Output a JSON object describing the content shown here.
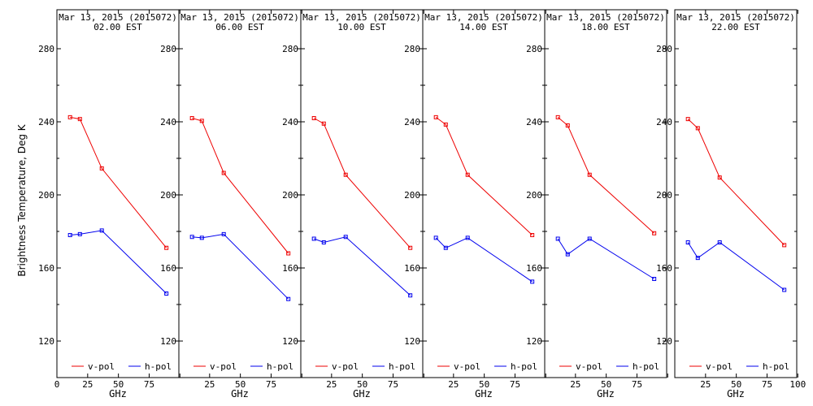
{
  "chart_data": {
    "type": "line",
    "ylabel": "Brightness Temperature, Deg K",
    "xlabel": "GHz",
    "xlim": [
      0,
      100
    ],
    "ylim": [
      100,
      295
    ],
    "yticks": [
      120,
      160,
      200,
      240,
      280
    ],
    "xticks": [
      0,
      25,
      50,
      75,
      100
    ],
    "x_tick_labels": [
      "0",
      "25",
      "50",
      "75",
      "100"
    ],
    "legend": [
      {
        "name": "v-pol",
        "color": "#ee0000"
      },
      {
        "name": "h-pol",
        "color": "#0000ee"
      }
    ],
    "legend_position": "bottom",
    "panels": [
      {
        "title": "Mar 13, 2015 (2015072)",
        "subtitle": "02.00 EST",
        "series": [
          {
            "name": "v-pol",
            "color": "#ee0000",
            "x": [
              10.7,
              18.7,
              36.5,
              89.0
            ],
            "y": [
              242.5,
              241.5,
              214.5,
              171.0
            ]
          },
          {
            "name": "h-pol",
            "color": "#0000ee",
            "x": [
              10.7,
              18.7,
              36.5,
              89.0
            ],
            "y": [
              178.0,
              178.5,
              180.5,
              146.0
            ]
          }
        ]
      },
      {
        "title": "Mar 13, 2015 (2015072)",
        "subtitle": "06.00 EST",
        "series": [
          {
            "name": "v-pol",
            "color": "#ee0000",
            "x": [
              10.7,
              18.7,
              36.5,
              89.0
            ],
            "y": [
              242.0,
              240.5,
              212.0,
              168.0
            ]
          },
          {
            "name": "h-pol",
            "color": "#0000ee",
            "x": [
              10.7,
              18.7,
              36.5,
              89.0
            ],
            "y": [
              177.0,
              176.5,
              178.5,
              143.0
            ]
          }
        ]
      },
      {
        "title": "Mar 13, 2015 (2015072)",
        "subtitle": "10.00 EST",
        "series": [
          {
            "name": "v-pol",
            "color": "#ee0000",
            "x": [
              10.7,
              18.7,
              36.5,
              89.0
            ],
            "y": [
              242.0,
              239.0,
              211.0,
              171.0
            ]
          },
          {
            "name": "h-pol",
            "color": "#0000ee",
            "x": [
              10.7,
              18.7,
              36.5,
              89.0
            ],
            "y": [
              176.0,
              174.0,
              177.0,
              145.0
            ]
          }
        ]
      },
      {
        "title": "Mar 13, 2015 (2015072)",
        "subtitle": "14.00 EST",
        "series": [
          {
            "name": "v-pol",
            "color": "#ee0000",
            "x": [
              10.7,
              18.7,
              36.5,
              89.0
            ],
            "y": [
              242.5,
              238.5,
              211.0,
              178.0
            ]
          },
          {
            "name": "h-pol",
            "color": "#0000ee",
            "x": [
              10.7,
              18.7,
              36.5,
              89.0
            ],
            "y": [
              176.5,
              171.0,
              176.5,
              152.5
            ]
          }
        ]
      },
      {
        "title": "Mar 13, 2015 (2015072)",
        "subtitle": "18.00 EST",
        "series": [
          {
            "name": "v-pol",
            "color": "#ee0000",
            "x": [
              10.7,
              18.7,
              36.5,
              89.0
            ],
            "y": [
              242.5,
              238.0,
              211.0,
              179.0
            ]
          },
          {
            "name": "h-pol",
            "color": "#0000ee",
            "x": [
              10.7,
              18.7,
              36.5,
              89.0
            ],
            "y": [
              176.0,
              167.5,
              176.0,
              154.0
            ]
          }
        ]
      },
      {
        "title": "Mar 13, 2015 (2015072)",
        "subtitle": "22.00 EST",
        "series": [
          {
            "name": "v-pol",
            "color": "#ee0000",
            "x": [
              10.7,
              18.7,
              36.5,
              89.0
            ],
            "y": [
              241.5,
              236.5,
              209.5,
              172.5
            ]
          },
          {
            "name": "h-pol",
            "color": "#0000ee",
            "x": [
              10.7,
              18.7,
              36.5,
              89.0
            ],
            "y": [
              174.0,
              165.5,
              174.0,
              148.0
            ]
          }
        ]
      }
    ]
  }
}
